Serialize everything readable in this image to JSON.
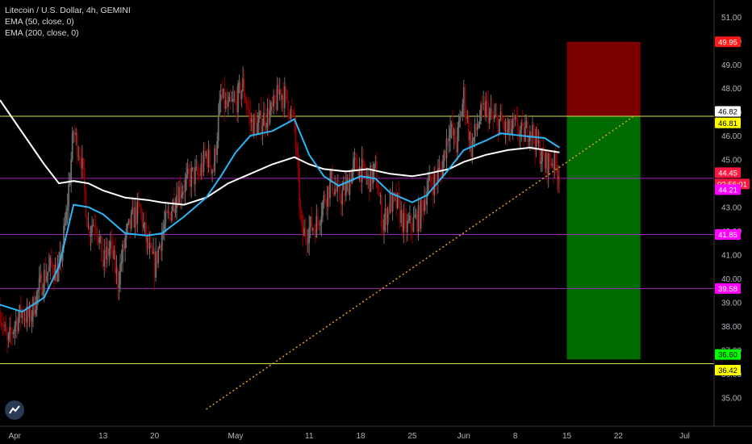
{
  "legend": {
    "symbol": "Litecoin / U.S. Dollar, 4h, GEMINI",
    "ema50": "EMA (50, close, 0)",
    "ema200": "EMA (200, close, 0)"
  },
  "chart_data": {
    "type": "candlestick",
    "symbol": "Litecoin / U.S. Dollar",
    "interval": "4h",
    "exchange": "GEMINI",
    "ylim": [
      34.4,
      51.3
    ],
    "y_ticks": [
      "35.00",
      "36.00",
      "37.00",
      "38.00",
      "39.00",
      "40.00",
      "41.00",
      "42.00",
      "43.00",
      "44.00",
      "45.00",
      "46.00",
      "47.00",
      "48.00",
      "49.00",
      "50.00",
      "51.00"
    ],
    "x_range_days": [
      "2020-03-30",
      "2020-07-05"
    ],
    "x_ticks": [
      {
        "label": "Apr",
        "date": "2020-04-01"
      },
      {
        "label": "13",
        "date": "2020-04-13"
      },
      {
        "label": "20",
        "date": "2020-04-20"
      },
      {
        "label": "May",
        "date": "2020-05-01"
      },
      {
        "label": "11",
        "date": "2020-05-11"
      },
      {
        "label": "18",
        "date": "2020-05-18"
      },
      {
        "label": "25",
        "date": "2020-05-25"
      },
      {
        "label": "Jun",
        "date": "2020-06-01"
      },
      {
        "label": "8",
        "date": "2020-06-08"
      },
      {
        "label": "15",
        "date": "2020-06-15"
      },
      {
        "label": "22",
        "date": "2020-06-22"
      },
      {
        "label": "Jul",
        "date": "2020-07-01"
      }
    ],
    "price_path": [
      [
        "2020-03-30",
        38.7
      ],
      [
        "2020-03-31",
        37.2
      ],
      [
        "2020-04-01",
        38.1
      ],
      [
        "2020-04-02",
        38.6
      ],
      [
        "2020-04-03",
        38.3
      ],
      [
        "2020-04-04",
        39.3
      ],
      [
        "2020-04-05",
        40.1
      ],
      [
        "2020-04-06",
        40.5
      ],
      [
        "2020-04-07",
        40.2
      ],
      [
        "2020-04-08",
        42.6
      ],
      [
        "2020-04-09",
        46.2
      ],
      [
        "2020-04-10",
        45.1
      ],
      [
        "2020-04-11",
        42.1
      ],
      [
        "2020-04-12",
        42.5
      ],
      [
        "2020-04-13",
        40.6
      ],
      [
        "2020-04-14",
        41.4
      ],
      [
        "2020-04-15",
        39.9
      ],
      [
        "2020-04-16",
        41.6
      ],
      [
        "2020-04-17",
        42.5
      ],
      [
        "2020-04-18",
        42.9
      ],
      [
        "2020-04-19",
        41.4
      ],
      [
        "2020-04-20",
        40.5
      ],
      [
        "2020-04-21",
        41.9
      ],
      [
        "2020-04-22",
        42.7
      ],
      [
        "2020-04-23",
        43.6
      ],
      [
        "2020-04-24",
        43.9
      ],
      [
        "2020-04-25",
        44.3
      ],
      [
        "2020-04-26",
        44.3
      ],
      [
        "2020-04-27",
        45.2
      ],
      [
        "2020-04-28",
        44.6
      ],
      [
        "2020-04-29",
        47.6
      ],
      [
        "2020-04-30",
        47.1
      ],
      [
        "2020-05-01",
        47.4
      ],
      [
        "2020-05-02",
        48.1
      ],
      [
        "2020-05-03",
        46.6
      ],
      [
        "2020-05-04",
        46.4
      ],
      [
        "2020-05-05",
        46.8
      ],
      [
        "2020-05-06",
        47.0
      ],
      [
        "2020-05-07",
        47.9
      ],
      [
        "2020-05-08",
        47.5
      ],
      [
        "2020-05-09",
        46.4
      ],
      [
        "2020-05-10",
        41.8
      ],
      [
        "2020-05-11",
        42.1
      ],
      [
        "2020-05-12",
        42.3
      ],
      [
        "2020-05-13",
        43.3
      ],
      [
        "2020-05-14",
        44.1
      ],
      [
        "2020-05-15",
        43.4
      ],
      [
        "2020-05-16",
        43.7
      ],
      [
        "2020-05-17",
        44.7
      ],
      [
        "2020-05-18",
        44.6
      ],
      [
        "2020-05-19",
        44.1
      ],
      [
        "2020-05-20",
        44.5
      ],
      [
        "2020-05-21",
        42.3
      ],
      [
        "2020-05-22",
        43.2
      ],
      [
        "2020-05-23",
        43.1
      ],
      [
        "2020-05-24",
        42.1
      ],
      [
        "2020-05-25",
        42.3
      ],
      [
        "2020-05-26",
        42.6
      ],
      [
        "2020-05-27",
        43.8
      ],
      [
        "2020-05-28",
        44.1
      ],
      [
        "2020-05-29",
        44.6
      ],
      [
        "2020-05-30",
        46.4
      ],
      [
        "2020-05-31",
        45.6
      ],
      [
        "2020-06-01",
        47.7
      ],
      [
        "2020-06-02",
        45.5
      ],
      [
        "2020-06-03",
        46.6
      ],
      [
        "2020-06-04",
        47.2
      ],
      [
        "2020-06-05",
        46.6
      ],
      [
        "2020-06-06",
        46.6
      ],
      [
        "2020-06-07",
        46.1
      ],
      [
        "2020-06-08",
        46.4
      ],
      [
        "2020-06-09",
        46.0
      ],
      [
        "2020-06-10",
        46.4
      ],
      [
        "2020-06-11",
        45.6
      ],
      [
        "2020-06-12",
        44.8
      ],
      [
        "2020-06-13",
        45.0
      ],
      [
        "2020-06-14",
        44.45
      ]
    ],
    "ema50": [
      [
        "2020-03-30",
        38.9
      ],
      [
        "2020-04-02",
        38.6
      ],
      [
        "2020-04-05",
        39.2
      ],
      [
        "2020-04-07",
        40.5
      ],
      [
        "2020-04-09",
        43.1
      ],
      [
        "2020-04-11",
        43.0
      ],
      [
        "2020-04-13",
        42.7
      ],
      [
        "2020-04-16",
        41.9
      ],
      [
        "2020-04-19",
        41.8
      ],
      [
        "2020-04-21",
        41.9
      ],
      [
        "2020-04-24",
        42.6
      ],
      [
        "2020-04-27",
        43.4
      ],
      [
        "2020-04-29",
        44.3
      ],
      [
        "2020-05-01",
        45.3
      ],
      [
        "2020-05-03",
        46.0
      ],
      [
        "2020-05-06",
        46.2
      ],
      [
        "2020-05-09",
        46.7
      ],
      [
        "2020-05-11",
        45.2
      ],
      [
        "2020-05-13",
        44.3
      ],
      [
        "2020-05-15",
        43.9
      ],
      [
        "2020-05-18",
        44.3
      ],
      [
        "2020-05-20",
        44.2
      ],
      [
        "2020-05-22",
        43.6
      ],
      [
        "2020-05-25",
        43.2
      ],
      [
        "2020-05-27",
        43.5
      ],
      [
        "2020-05-30",
        44.6
      ],
      [
        "2020-06-01",
        45.4
      ],
      [
        "2020-06-04",
        45.8
      ],
      [
        "2020-06-06",
        46.1
      ],
      [
        "2020-06-09",
        46.0
      ],
      [
        "2020-06-12",
        45.9
      ],
      [
        "2020-06-14",
        45.5
      ]
    ],
    "ema200": [
      [
        "2020-03-30",
        47.5
      ],
      [
        "2020-04-01",
        46.6
      ],
      [
        "2020-04-03",
        45.7
      ],
      [
        "2020-04-05",
        44.8
      ],
      [
        "2020-04-07",
        44.0
      ],
      [
        "2020-04-09",
        44.1
      ],
      [
        "2020-04-11",
        44.0
      ],
      [
        "2020-04-13",
        43.7
      ],
      [
        "2020-04-16",
        43.4
      ],
      [
        "2020-04-19",
        43.3
      ],
      [
        "2020-04-21",
        43.2
      ],
      [
        "2020-04-24",
        43.1
      ],
      [
        "2020-04-27",
        43.4
      ],
      [
        "2020-04-30",
        44.0
      ],
      [
        "2020-05-03",
        44.4
      ],
      [
        "2020-05-06",
        44.8
      ],
      [
        "2020-05-09",
        45.1
      ],
      [
        "2020-05-11",
        44.8
      ],
      [
        "2020-05-13",
        44.6
      ],
      [
        "2020-05-16",
        44.5
      ],
      [
        "2020-05-19",
        44.6
      ],
      [
        "2020-05-22",
        44.4
      ],
      [
        "2020-05-25",
        44.3
      ],
      [
        "2020-05-27",
        44.4
      ],
      [
        "2020-05-30",
        44.6
      ],
      [
        "2020-06-01",
        44.9
      ],
      [
        "2020-06-04",
        45.2
      ],
      [
        "2020-06-07",
        45.4
      ],
      [
        "2020-06-10",
        45.5
      ],
      [
        "2020-06-14",
        45.3
      ]
    ],
    "horizontal_lines": [
      {
        "price": 46.82,
        "color": "#d9e24c",
        "label": "46.82"
      },
      {
        "price": 44.21,
        "color": "#9c27b0",
        "label": "44.21"
      },
      {
        "price": 41.85,
        "color": "#9c27b0",
        "label": "41.85"
      },
      {
        "price": 39.58,
        "color": "#9c27b0",
        "label": "39.58"
      },
      {
        "price": 36.42,
        "color": "#d9e24c",
        "label": "36.42"
      }
    ],
    "trendline": {
      "from": [
        "2020-04-27",
        34.5
      ],
      "to": [
        "2020-06-24",
        46.8
      ],
      "color": "#f5a623"
    },
    "position": {
      "from": "2020-06-15",
      "to": "2020-06-25",
      "stop": 49.95,
      "entry": 46.81,
      "target": 36.6,
      "stop_color": "#7b0000",
      "target_color": "#006b00"
    },
    "price_labels": [
      {
        "text": "49.95",
        "price": 49.95,
        "bg": "#ff1a1a",
        "fg": "#ffffff"
      },
      {
        "text": "46.82",
        "price": 46.82,
        "bg": "#ffffff",
        "fg": "#000000"
      },
      {
        "text": "46.81",
        "price": 46.81,
        "bg": "#ffff00",
        "fg": "#000000"
      },
      {
        "text": "44.45",
        "price": 44.45,
        "bg": "#ff1744",
        "fg": "#ffffff"
      },
      {
        "text": "02:56:01",
        "price": 44.45,
        "bg": "#ff1744",
        "fg": "#ffffff",
        "below": true
      },
      {
        "text": "44.21",
        "price": 44.21,
        "bg": "#ff00ff",
        "fg": "#ffffff"
      },
      {
        "text": "41.85",
        "price": 41.85,
        "bg": "#ff00ff",
        "fg": "#ffffff"
      },
      {
        "text": "39.58",
        "price": 39.58,
        "bg": "#ff00ff",
        "fg": "#ffffff"
      },
      {
        "text": "36.60",
        "price": 36.6,
        "bg": "#00ff00",
        "fg": "#000000"
      },
      {
        "text": "36.42",
        "price": 36.42,
        "bg": "#ffff00",
        "fg": "#000000"
      }
    ],
    "colors": {
      "background": "#000000",
      "up": "#6d6d6d",
      "down": "#8b0000",
      "ema50": "#29b6f6",
      "ema200": "#ffffff",
      "axis_text": "#b2b5be"
    }
  }
}
